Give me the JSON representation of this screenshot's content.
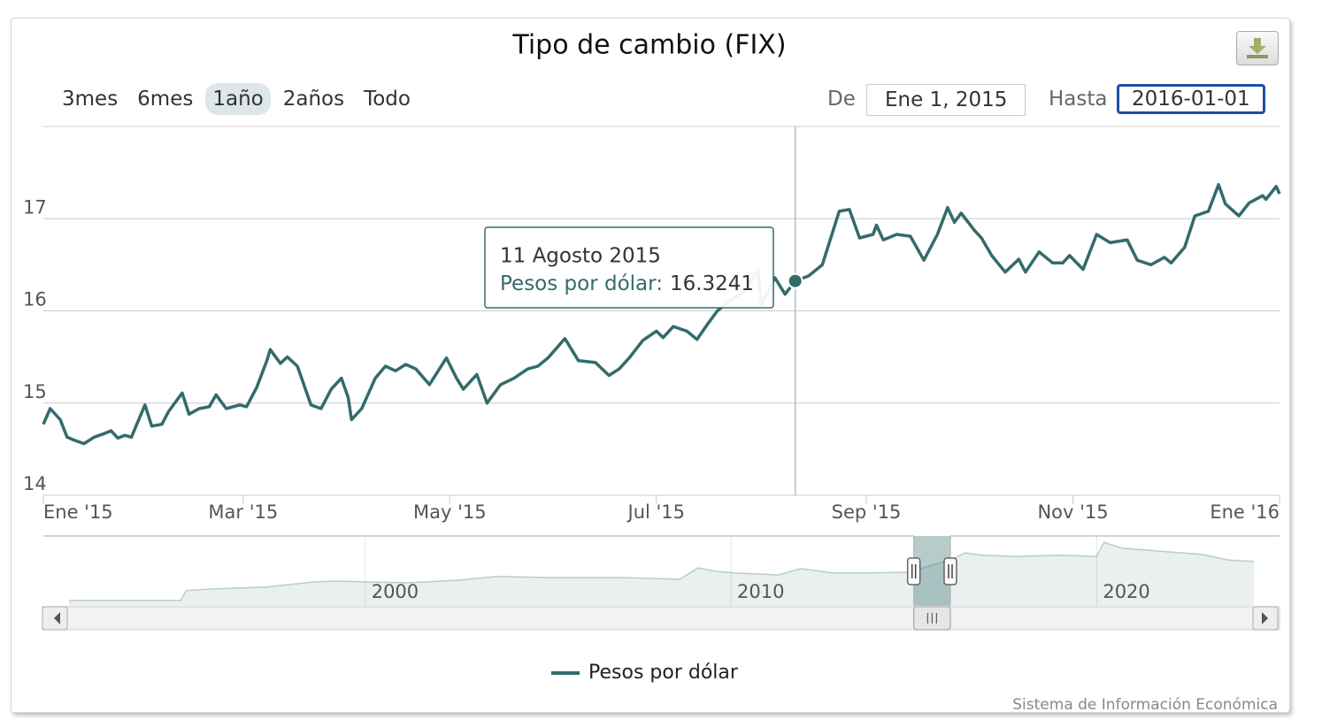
{
  "chart_data": [
    {
      "type": "line",
      "title": "Tipo de cambio (FIX)",
      "grid": true,
      "xlim": [
        "2015-01-01",
        "2016-01-01"
      ],
      "xticks": [
        {
          "value": "2015-01-01",
          "label": "Ene '15"
        },
        {
          "value": "2015-03-01",
          "label": "Mar '15"
        },
        {
          "value": "2015-05-01",
          "label": "May '15"
        },
        {
          "value": "2015-07-01",
          "label": "Jul '15"
        },
        {
          "value": "2015-09-01",
          "label": "Sep '15"
        },
        {
          "value": "2015-11-01",
          "label": "Nov '15"
        },
        {
          "value": "2016-01-01",
          "label": "Ene '16"
        }
      ],
      "ylim": [
        14,
        18
      ],
      "yticks": [
        14,
        15,
        16,
        17
      ],
      "x": [
        "2015-01-01",
        "2015-01-03",
        "2015-01-06",
        "2015-01-08",
        "2015-01-10",
        "2015-01-13",
        "2015-01-16",
        "2015-01-19",
        "2015-01-21",
        "2015-01-23",
        "2015-01-25",
        "2015-01-27",
        "2015-01-31",
        "2015-02-02",
        "2015-02-05",
        "2015-02-07",
        "2015-02-11",
        "2015-02-13",
        "2015-02-16",
        "2015-02-19",
        "2015-02-21",
        "2015-02-24",
        "2015-02-28",
        "2015-03-02",
        "2015-03-05",
        "2015-03-08",
        "2015-03-09",
        "2015-03-12",
        "2015-03-14",
        "2015-03-17",
        "2015-03-21",
        "2015-03-24",
        "2015-03-27",
        "2015-03-30",
        "2015-04-01",
        "2015-04-02",
        "2015-04-05",
        "2015-04-09",
        "2015-04-12",
        "2015-04-15",
        "2015-04-18",
        "2015-04-21",
        "2015-04-25",
        "2015-04-30",
        "2015-05-03",
        "2015-05-05",
        "2015-05-09",
        "2015-05-12",
        "2015-05-16",
        "2015-05-20",
        "2015-05-24",
        "2015-05-27",
        "2015-05-30",
        "2015-06-04",
        "2015-06-08",
        "2015-06-13",
        "2015-06-17",
        "2015-06-20",
        "2015-06-23",
        "2015-06-27",
        "2015-07-01",
        "2015-07-03",
        "2015-07-06",
        "2015-07-10",
        "2015-07-13",
        "2015-07-16",
        "2015-07-19",
        "2015-07-23",
        "2015-07-27",
        "2015-07-31",
        "2015-08-01",
        "2015-08-05",
        "2015-08-08",
        "2015-08-11",
        "2015-08-15",
        "2015-08-19",
        "2015-08-24",
        "2015-08-27",
        "2015-08-30",
        "2015-09-03",
        "2015-09-04",
        "2015-09-06",
        "2015-09-10",
        "2015-09-14",
        "2015-09-18",
        "2015-09-22",
        "2015-09-25",
        "2015-09-27",
        "2015-09-29",
        "2015-10-03",
        "2015-10-05",
        "2015-10-08",
        "2015-10-12",
        "2015-10-16",
        "2015-10-18",
        "2015-10-22",
        "2015-10-26",
        "2015-10-29",
        "2015-10-31",
        "2015-11-04",
        "2015-11-08",
        "2015-11-12",
        "2015-11-17",
        "2015-11-20",
        "2015-11-24",
        "2015-11-28",
        "2015-11-30",
        "2015-12-04",
        "2015-12-07",
        "2015-12-11",
        "2015-12-14",
        "2015-12-16",
        "2015-12-20",
        "2015-12-23",
        "2015-12-27",
        "2015-12-28",
        "2015-12-31",
        "2016-01-01"
      ],
      "series": [
        {
          "name": "Pesos por dólar",
          "color": "#336b6b",
          "values": [
            14.77,
            14.94,
            14.82,
            14.63,
            14.6,
            14.56,
            14.63,
            14.67,
            14.7,
            14.62,
            14.65,
            14.63,
            14.98,
            14.75,
            14.77,
            14.91,
            15.11,
            14.88,
            14.94,
            14.96,
            15.09,
            14.94,
            14.98,
            14.96,
            15.17,
            15.46,
            15.58,
            15.43,
            15.5,
            15.4,
            14.98,
            14.94,
            15.15,
            15.27,
            15.06,
            14.82,
            14.94,
            15.27,
            15.4,
            15.35,
            15.42,
            15.37,
            15.2,
            15.49,
            15.27,
            15.15,
            15.31,
            15.0,
            15.2,
            15.27,
            15.37,
            15.4,
            15.49,
            15.7,
            15.46,
            15.44,
            15.3,
            15.37,
            15.49,
            15.68,
            15.78,
            15.71,
            15.83,
            15.78,
            15.69,
            15.85,
            16.0,
            16.12,
            16.21,
            16.45,
            16.07,
            16.36,
            16.18,
            16.3241,
            16.38,
            16.5,
            17.08,
            17.1,
            16.79,
            16.83,
            16.93,
            16.77,
            16.83,
            16.81,
            16.55,
            16.83,
            17.12,
            16.96,
            17.06,
            16.87,
            16.79,
            16.6,
            16.42,
            16.56,
            16.42,
            16.64,
            16.52,
            16.52,
            16.6,
            16.45,
            16.83,
            16.74,
            16.77,
            16.55,
            16.5,
            16.58,
            16.52,
            16.69,
            17.03,
            17.08,
            17.37,
            17.16,
            17.03,
            17.17,
            17.25,
            17.21,
            17.35,
            17.27
          ]
        }
      ],
      "tooltip": {
        "x": "2015-08-11",
        "title": "11 Agosto 2015",
        "label": "Pesos por dólar:"
      }
    },
    {
      "type": "area",
      "color": "#336b6b",
      "xlim": [
        1991.2,
        2025.0
      ],
      "xticks": [
        2000,
        2010,
        2020
      ],
      "ylim": [
        1.1,
        26.8
      ],
      "x": [
        1991.9,
        1994.95,
        1995.1,
        1995.8,
        1997.3,
        1998.6,
        1999.2,
        2000.0,
        2001.2,
        2002.6,
        2003.6,
        2005.0,
        2007.0,
        2008.6,
        2009.1,
        2009.6,
        2010.1,
        2011.3,
        2011.9,
        2012.8,
        2013.7,
        2014.9,
        2015.0,
        2016.0,
        2016.4,
        2016.9,
        2017.8,
        2019.0,
        2020.0,
        2020.2,
        2020.7,
        2021.9,
        2022.9,
        2023.6,
        2024.3
      ],
      "values": [
        3.1,
        3.1,
        6.7,
        7.3,
        8.0,
        9.9,
        10.2,
        9.9,
        9.6,
        10.6,
        11.9,
        11.5,
        11.5,
        10.9,
        15.1,
        13.8,
        13.2,
        12.5,
        14.8,
        13.2,
        13.2,
        13.5,
        14.1,
        18.0,
        20.6,
        19.7,
        19.3,
        19.7,
        19.3,
        24.5,
        22.3,
        21.0,
        20.0,
        18.0,
        17.4
      ]
    }
  ],
  "range_selector": {
    "buttons": [
      "3mes",
      "6mes",
      "1año",
      "2años",
      "Todo"
    ],
    "selected": 2,
    "from_label": "De",
    "from": "Ene 1, 2015",
    "to_label": "Hasta",
    "to": "2016-01-01"
  },
  "credits": "Sistema de Información Económica"
}
